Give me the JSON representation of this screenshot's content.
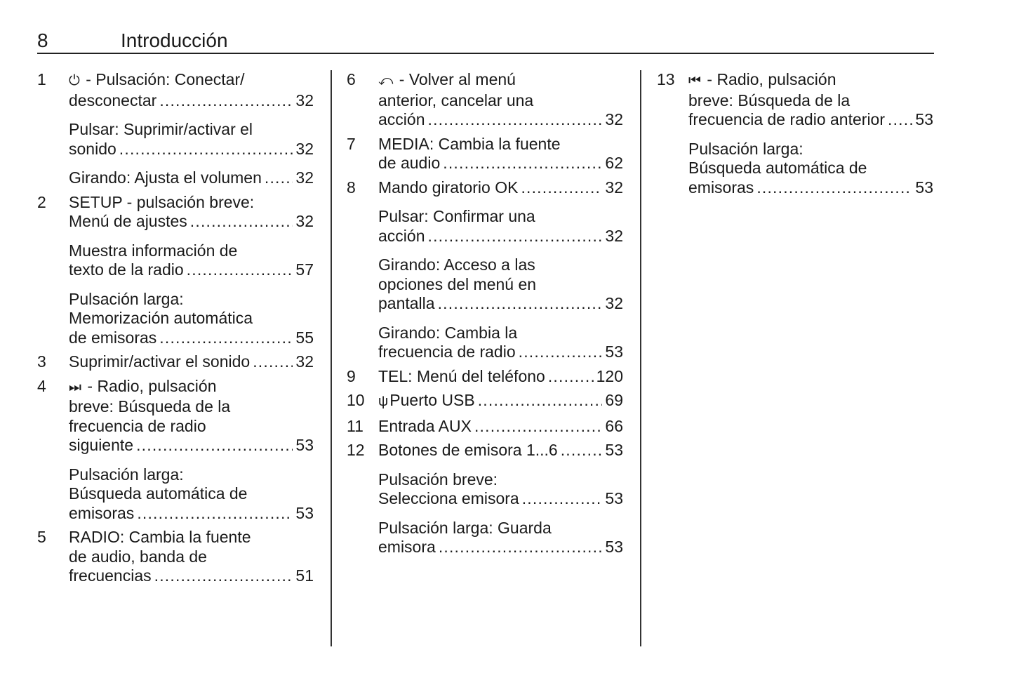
{
  "header": {
    "page_number": "8",
    "title": "Introducción"
  },
  "columns": [
    {
      "entries": [
        {
          "num": "1",
          "icon": "⏻",
          "icon_name": "power-icon",
          "blocks": [
            {
              "lines": [
                " - Pulsación: Conectar/",
                "desconectar"
              ],
              "page": "32"
            },
            {
              "lines": [
                "Pulsar: Suprimir/activar el",
                "sonido"
              ],
              "page": "32"
            },
            {
              "lines": [
                "Girando: Ajusta el volumen"
              ],
              "page": "32"
            }
          ]
        },
        {
          "num": "2",
          "blocks": [
            {
              "lines": [
                "SETUP - pulsación breve:",
                "Menú de ajustes"
              ],
              "page": "32"
            },
            {
              "lines": [
                "Muestra información de",
                "texto de la radio"
              ],
              "page": "57"
            },
            {
              "lines": [
                "Pulsación larga:",
                "Memorización automática",
                "de emisoras"
              ],
              "page": "55"
            }
          ]
        },
        {
          "num": "3",
          "blocks": [
            {
              "lines": [
                "Suprimir/activar el sonido"
              ],
              "page": "32"
            }
          ]
        },
        {
          "num": "4",
          "icon": "⏭",
          "icon_name": "next-track-icon",
          "blocks": [
            {
              "lines": [
                " - Radio, pulsación",
                "breve: Búsqueda de la",
                "frecuencia de radio",
                "siguiente"
              ],
              "page": "53"
            },
            {
              "lines": [
                "Pulsación larga:",
                "Búsqueda automática de",
                "emisoras"
              ],
              "page": "53"
            }
          ]
        },
        {
          "num": "5",
          "blocks": [
            {
              "lines": [
                "RADIO: Cambia la fuente",
                "de audio, banda de",
                "frecuencias"
              ],
              "page": "51"
            }
          ]
        }
      ]
    },
    {
      "entries": [
        {
          "num": "6",
          "icon": "⤺",
          "icon_name": "back-icon",
          "blocks": [
            {
              "lines": [
                " - Volver al menú",
                "anterior, cancelar una",
                "acción"
              ],
              "page": "32"
            }
          ]
        },
        {
          "num": "7",
          "blocks": [
            {
              "lines": [
                "MEDIA: Cambia la fuente",
                "de audio"
              ],
              "page": "62"
            }
          ]
        },
        {
          "num": "8",
          "blocks": [
            {
              "lines": [
                "Mando giratorio OK"
              ],
              "page": "32"
            },
            {
              "lines": [
                "Pulsar: Confirmar una",
                "acción"
              ],
              "page": "32"
            },
            {
              "lines": [
                "Girando: Acceso a las",
                "opciones del menú en",
                "pantalla"
              ],
              "page": "32"
            },
            {
              "lines": [
                "Girando: Cambia la",
                "frecuencia de radio"
              ],
              "page": "53"
            }
          ]
        },
        {
          "num": "9",
          "blocks": [
            {
              "lines": [
                "TEL: Menú del teléfono"
              ],
              "page": "120"
            }
          ]
        },
        {
          "num": "10",
          "icon": "ψ",
          "icon_name": "usb-icon",
          "blocks": [
            {
              "lines": [
                " Puerto USB"
              ],
              "page": "69"
            }
          ]
        },
        {
          "num": "11",
          "blocks": [
            {
              "lines": [
                "Entrada AUX"
              ],
              "page": "66"
            }
          ]
        },
        {
          "num": "12",
          "blocks": [
            {
              "lines": [
                "Botones de emisora 1...6"
              ],
              "page": "53"
            },
            {
              "lines": [
                "Pulsación breve:",
                "Selecciona emisora"
              ],
              "page": "53"
            },
            {
              "lines": [
                "Pulsación larga: Guarda",
                "emisora"
              ],
              "page": "53"
            }
          ]
        }
      ]
    },
    {
      "entries": [
        {
          "num": "13",
          "icon": "⏮",
          "icon_name": "previous-track-icon",
          "blocks": [
            {
              "lines": [
                " - Radio, pulsación",
                "breve: Búsqueda de la",
                "frecuencia de radio anterior"
              ],
              "page": "53"
            },
            {
              "lines": [
                "Pulsación larga:",
                "Búsqueda automática de",
                "emisoras"
              ],
              "page": "53"
            }
          ]
        }
      ]
    }
  ]
}
